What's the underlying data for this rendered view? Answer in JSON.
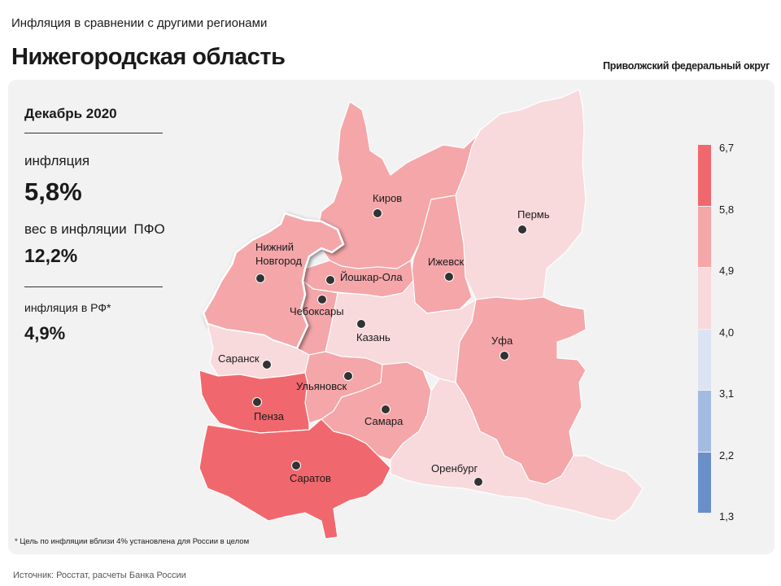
{
  "header": {
    "supertitle": "Инфляция в сравнении с другими регионами",
    "title": "Нижегородская область",
    "district": "Приволжский федеральный округ"
  },
  "stats": {
    "period": "Декабрь 2020",
    "inflation_label": "инфляция",
    "inflation_value": "5,8%",
    "weight_label": "вес в инфляции",
    "weight_label_suffix": "ПФО",
    "weight_value": "12,2%",
    "rf_label": "инфляция  в РФ*",
    "rf_value": "4,9%"
  },
  "regions": [
    {
      "id": "kirov",
      "city": "Киров",
      "inflation_bin": "4,9–5,8",
      "color": "#f4a6a9"
    },
    {
      "id": "perm",
      "city": "Пермь",
      "inflation_bin": "4,0–4,9",
      "color": "#f8d9dc"
    },
    {
      "id": "nizhny",
      "city": "Нижний Новгород",
      "inflation_bin": "4,9–5,8",
      "color": "#f4a6a9",
      "highlighted": true
    },
    {
      "id": "yoshkar",
      "city": "Йошкар-Ола",
      "inflation_bin": "4,9–5,8",
      "color": "#f4a6a9"
    },
    {
      "id": "izhevsk",
      "city": "Ижевск",
      "inflation_bin": "4,9–5,8",
      "color": "#f4a6a9"
    },
    {
      "id": "cheboksary",
      "city": "Чебоксары",
      "inflation_bin": "4,9–5,8",
      "color": "#f4a6a9"
    },
    {
      "id": "kazan",
      "city": "Казань",
      "inflation_bin": "4,0–4,9",
      "color": "#f8d9dc"
    },
    {
      "id": "saransk",
      "city": "Саранск",
      "inflation_bin": "4,0–4,9",
      "color": "#f8d9dc"
    },
    {
      "id": "ufa",
      "city": "Уфа",
      "inflation_bin": "4,9–5,8",
      "color": "#f4a6a9"
    },
    {
      "id": "ulyanovsk",
      "city": "Ульяновск",
      "inflation_bin": "4,9–5,8",
      "color": "#f4a6a9"
    },
    {
      "id": "penza",
      "city": "Пенза",
      "inflation_bin": "5,8–6,7",
      "color": "#f0686d"
    },
    {
      "id": "samara",
      "city": "Самара",
      "inflation_bin": "4,9–5,8",
      "color": "#f4a6a9"
    },
    {
      "id": "saratov",
      "city": "Саратов",
      "inflation_bin": "5,8–6,7",
      "color": "#f0686d"
    },
    {
      "id": "orenburg",
      "city": "Оренбург",
      "inflation_bin": "4,0–4,9",
      "color": "#f8d9dc"
    }
  ],
  "legend": {
    "ticks": [
      "6,7",
      "5,8",
      "4,9",
      "4,0",
      "3,1",
      "2,2",
      "1,3"
    ],
    "colors": [
      "#f0686d",
      "#f4a6a9",
      "#f8d9dc",
      "#dce3f3",
      "#a3bbe0",
      "#6a8fc8"
    ]
  },
  "footnote": "* Цель по инфляции вблизи 4% установлена для России в целом",
  "source": "Источник: Росстат, расчеты Банка России"
}
